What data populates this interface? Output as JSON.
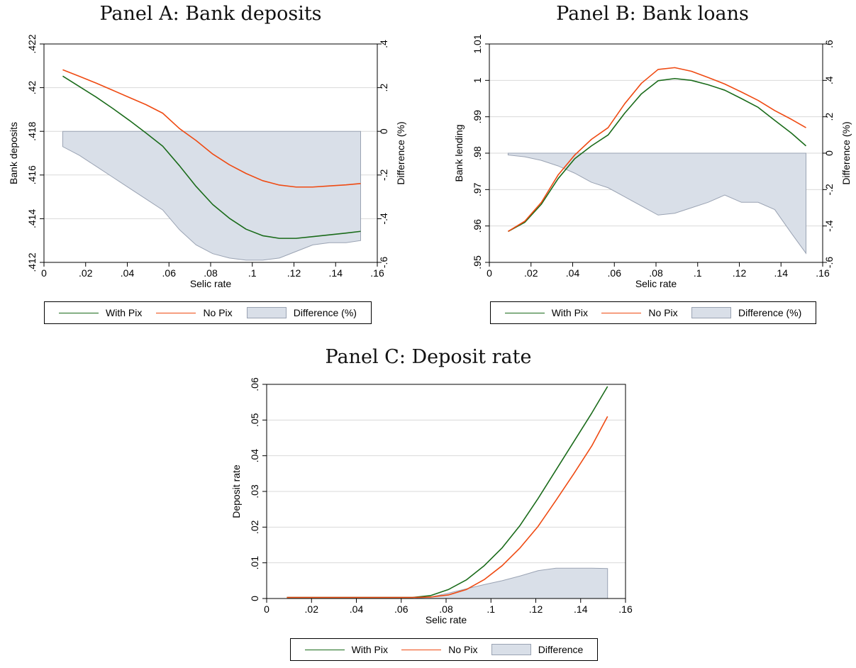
{
  "colors": {
    "with_pix": "#1a6b1a",
    "no_pix": "#ef4a12",
    "difference_fill": "#d9dfe8",
    "difference_stroke": "#9aa3b3",
    "grid": "#d9d9d9"
  },
  "chart_data": [
    {
      "id": "A",
      "type": "line",
      "title": "Panel A: Bank deposits",
      "xlabel": "Selic rate",
      "ylabel": "Bank deposits",
      "y2label": "Difference (%)",
      "xlim": [
        0,
        0.16
      ],
      "ylim": [
        0.412,
        0.422
      ],
      "y2lim": [
        -0.6,
        0.4
      ],
      "xticks": [
        0,
        0.02,
        0.04,
        0.06,
        0.08,
        0.1,
        0.12,
        0.14,
        0.16
      ],
      "xtick_labels": [
        "0",
        ".02",
        ".04",
        ".06",
        ".08",
        ".1",
        ".12",
        ".14",
        ".16"
      ],
      "yticks": [
        0.412,
        0.414,
        0.416,
        0.418,
        0.42,
        0.422
      ],
      "ytick_labels": [
        ".412",
        ".414",
        ".416",
        ".418",
        ".42",
        ".422"
      ],
      "y2ticks": [
        -0.6,
        -0.4,
        -0.2,
        0,
        0.2,
        0.4
      ],
      "y2tick_labels": [
        "-.6",
        "-.4",
        "-.2",
        "0",
        ".2",
        ".4"
      ],
      "grid": true,
      "legend_position": "bottom",
      "series": [
        {
          "name": "With Pix",
          "axis": "left",
          "x": [
            0.009,
            0.017,
            0.025,
            0.033,
            0.041,
            0.049,
            0.057,
            0.065,
            0.073,
            0.081,
            0.089,
            0.097,
            0.105,
            0.113,
            0.121,
            0.129,
            0.137,
            0.145,
            0.152
          ],
          "y": [
            0.42053,
            0.42005,
            0.41957,
            0.41905,
            0.4185,
            0.41792,
            0.41732,
            0.41643,
            0.41548,
            0.41465,
            0.41402,
            0.41352,
            0.41322,
            0.4131,
            0.4131,
            0.41318,
            0.41326,
            0.41334,
            0.41342
          ]
        },
        {
          "name": "No Pix",
          "axis": "left",
          "x": [
            0.009,
            0.017,
            0.025,
            0.033,
            0.041,
            0.049,
            0.057,
            0.065,
            0.073,
            0.081,
            0.089,
            0.097,
            0.105,
            0.113,
            0.121,
            0.129,
            0.137,
            0.145,
            0.152
          ],
          "y": [
            0.42082,
            0.42052,
            0.42021,
            0.41988,
            0.41955,
            0.41922,
            0.41883,
            0.41813,
            0.41758,
            0.41696,
            0.41647,
            0.41607,
            0.41574,
            0.41554,
            0.41545,
            0.41545,
            0.4155,
            0.41555,
            0.41561
          ]
        },
        {
          "name": "Difference (%)",
          "axis": "right",
          "style": "area",
          "x": [
            0.009,
            0.017,
            0.025,
            0.033,
            0.041,
            0.049,
            0.057,
            0.065,
            0.073,
            0.081,
            0.089,
            0.097,
            0.105,
            0.113,
            0.121,
            0.129,
            0.137,
            0.145,
            0.152
          ],
          "y": [
            -0.07,
            -0.11,
            -0.16,
            -0.21,
            -0.26,
            -0.31,
            -0.36,
            -0.45,
            -0.52,
            -0.56,
            -0.58,
            -0.59,
            -0.59,
            -0.58,
            -0.55,
            -0.52,
            -0.51,
            -0.51,
            -0.5
          ]
        }
      ]
    },
    {
      "id": "B",
      "type": "line",
      "title": "Panel B: Bank loans",
      "xlabel": "Selic rate",
      "ylabel": "Bank lending",
      "y2label": "Difference (%)",
      "xlim": [
        0,
        0.16
      ],
      "ylim": [
        0.95,
        1.01
      ],
      "y2lim": [
        -0.6,
        0.6
      ],
      "xticks": [
        0,
        0.02,
        0.04,
        0.06,
        0.08,
        0.1,
        0.12,
        0.14,
        0.16
      ],
      "xtick_labels": [
        "0",
        ".02",
        ".04",
        ".06",
        ".08",
        ".1",
        ".12",
        ".14",
        ".16"
      ],
      "yticks": [
        0.95,
        0.96,
        0.97,
        0.98,
        0.99,
        1,
        1.01
      ],
      "ytick_labels": [
        ".95",
        ".96",
        ".97",
        ".98",
        ".99",
        "1",
        "1.01"
      ],
      "y2ticks": [
        -0.6,
        -0.4,
        -0.2,
        0,
        0.2,
        0.4,
        0.6
      ],
      "y2tick_labels": [
        "-.6",
        "-.4",
        "-.2",
        "0",
        ".2",
        ".4",
        ".6"
      ],
      "grid": true,
      "legend_position": "bottom",
      "series": [
        {
          "name": "With Pix",
          "axis": "left",
          "x": [
            0.009,
            0.017,
            0.025,
            0.033,
            0.041,
            0.049,
            0.057,
            0.065,
            0.073,
            0.081,
            0.089,
            0.097,
            0.105,
            0.113,
            0.121,
            0.129,
            0.137,
            0.145,
            0.152
          ],
          "y": [
            0.9585,
            0.961,
            0.966,
            0.973,
            0.9785,
            0.982,
            0.985,
            0.991,
            0.9963,
            0.9999,
            1.0005,
            1.0,
            0.9988,
            0.9973,
            0.995,
            0.9926,
            0.989,
            0.9855,
            0.982
          ]
        },
        {
          "name": "No Pix",
          "axis": "left",
          "x": [
            0.009,
            0.017,
            0.025,
            0.033,
            0.041,
            0.049,
            0.057,
            0.065,
            0.073,
            0.081,
            0.089,
            0.097,
            0.105,
            0.113,
            0.121,
            0.129,
            0.137,
            0.145,
            0.152
          ],
          "y": [
            0.9585,
            0.9613,
            0.9665,
            0.974,
            0.9795,
            0.9838,
            0.987,
            0.9936,
            0.9992,
            1.003,
            1.0035,
            1.0025,
            1.0008,
            0.999,
            0.9968,
            0.9945,
            0.9917,
            0.9893,
            0.987
          ]
        },
        {
          "name": "Difference (%)",
          "axis": "right",
          "style": "area",
          "x": [
            0.009,
            0.017,
            0.025,
            0.033,
            0.041,
            0.049,
            0.057,
            0.065,
            0.073,
            0.081,
            0.089,
            0.097,
            0.105,
            0.113,
            0.121,
            0.129,
            0.137,
            0.145,
            0.152
          ],
          "y": [
            -0.01,
            -0.02,
            -0.04,
            -0.07,
            -0.11,
            -0.16,
            -0.19,
            -0.24,
            -0.29,
            -0.34,
            -0.33,
            -0.3,
            -0.27,
            -0.23,
            -0.27,
            -0.27,
            -0.31,
            -0.44,
            -0.55
          ]
        }
      ]
    },
    {
      "id": "C",
      "type": "line",
      "title": "Panel C: Deposit rate",
      "xlabel": "Selic rate",
      "ylabel": "Deposit rate",
      "xlim": [
        0,
        0.16
      ],
      "ylim": [
        0,
        0.06
      ],
      "xticks": [
        0,
        0.02,
        0.04,
        0.06,
        0.08,
        0.1,
        0.12,
        0.14,
        0.16
      ],
      "xtick_labels": [
        "0",
        ".02",
        ".04",
        ".06",
        ".08",
        ".1",
        ".12",
        ".14",
        ".16"
      ],
      "yticks": [
        0,
        0.01,
        0.02,
        0.03,
        0.04,
        0.05,
        0.06
      ],
      "ytick_labels": [
        "0",
        ".01",
        ".02",
        ".03",
        ".04",
        ".05",
        ".06"
      ],
      "grid": true,
      "legend_position": "bottom",
      "series": [
        {
          "name": "With Pix",
          "axis": "left",
          "x": [
            0.009,
            0.017,
            0.025,
            0.033,
            0.041,
            0.049,
            0.057,
            0.065,
            0.073,
            0.081,
            0.089,
            0.097,
            0.105,
            0.113,
            0.121,
            0.129,
            0.137,
            0.145,
            0.152
          ],
          "y": [
            0.0003,
            0.0003,
            0.0003,
            0.0003,
            0.0003,
            0.0003,
            0.0003,
            0.0003,
            0.0008,
            0.0025,
            0.0052,
            0.0092,
            0.0142,
            0.0205,
            0.028,
            0.036,
            0.044,
            0.052,
            0.0594
          ]
        },
        {
          "name": "No Pix",
          "axis": "left",
          "x": [
            0.009,
            0.017,
            0.025,
            0.033,
            0.041,
            0.049,
            0.057,
            0.065,
            0.073,
            0.081,
            0.089,
            0.097,
            0.105,
            0.113,
            0.121,
            0.129,
            0.137,
            0.145,
            0.152
          ],
          "y": [
            0.0003,
            0.0003,
            0.0003,
            0.0003,
            0.0003,
            0.0003,
            0.0003,
            0.0003,
            0.0004,
            0.001,
            0.0025,
            0.0053,
            0.0092,
            0.0142,
            0.0202,
            0.0275,
            0.035,
            0.0428,
            0.051
          ]
        },
        {
          "name": "Difference",
          "axis": "left",
          "style": "area",
          "x": [
            0.009,
            0.017,
            0.025,
            0.033,
            0.041,
            0.049,
            0.057,
            0.065,
            0.073,
            0.081,
            0.089,
            0.097,
            0.105,
            0.113,
            0.121,
            0.129,
            0.137,
            0.145,
            0.152
          ],
          "y": [
            0,
            0,
            0,
            0,
            0,
            0,
            0,
            0,
            0.0004,
            0.0015,
            0.0027,
            0.0039,
            0.005,
            0.0063,
            0.0078,
            0.0085,
            0.0085,
            0.0085,
            0.0084
          ]
        }
      ]
    }
  ],
  "legends": [
    {
      "panel": "A",
      "items": [
        {
          "label": "With Pix",
          "kind": "line",
          "color": "#1a6b1a"
        },
        {
          "label": "No Pix",
          "kind": "line",
          "color": "#ef4a12"
        },
        {
          "label": "Difference (%)",
          "kind": "area"
        }
      ]
    },
    {
      "panel": "B",
      "items": [
        {
          "label": "With Pix",
          "kind": "line",
          "color": "#1a6b1a"
        },
        {
          "label": "No Pix",
          "kind": "line",
          "color": "#ef4a12"
        },
        {
          "label": "Difference (%)",
          "kind": "area"
        }
      ]
    },
    {
      "panel": "C",
      "items": [
        {
          "label": "With Pix",
          "kind": "line",
          "color": "#1a6b1a"
        },
        {
          "label": "No Pix",
          "kind": "line",
          "color": "#ef4a12"
        },
        {
          "label": "Difference",
          "kind": "area"
        }
      ]
    }
  ]
}
